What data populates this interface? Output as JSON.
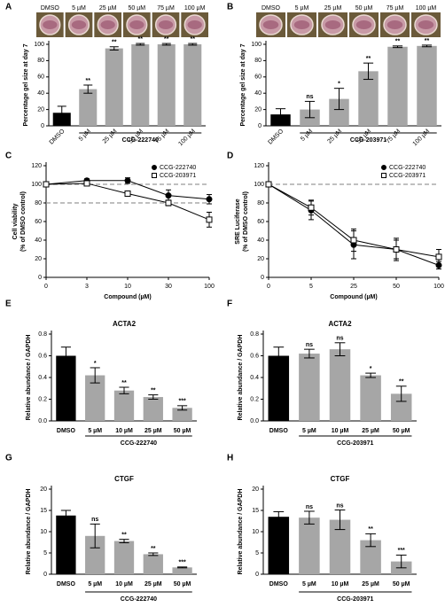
{
  "chart_data": [
    {
      "type": "bar",
      "panel": "A",
      "photo_labels": [
        "DMSO",
        "5 µM",
        "25 µM",
        "50 µM",
        "75 µM",
        "100 µM"
      ],
      "ylabel": [
        "Percentage gel size at day 7"
      ],
      "categories": [
        "DMSO",
        "5 µM",
        "25 µM",
        "50 µM",
        "75 µM",
        "100 µM"
      ],
      "values": [
        16,
        45,
        95,
        100,
        100,
        100
      ],
      "errors": [
        8,
        5,
        2,
        1,
        1,
        1
      ],
      "significance": [
        null,
        "**",
        "**",
        "**",
        "**",
        "**"
      ],
      "colors": [
        "#000000",
        "#a6a6a6",
        "#a6a6a6",
        "#a6a6a6",
        "#a6a6a6",
        "#a6a6a6"
      ],
      "ylim": [
        0,
        100
      ],
      "yticks": [
        0,
        20,
        40,
        60,
        80,
        100
      ],
      "group_label": "CCG-222740"
    },
    {
      "type": "bar",
      "panel": "B",
      "photo_labels": [
        "DMSO",
        "5 µM",
        "25 µM",
        "50 µM",
        "75 µM",
        "100 µM"
      ],
      "ylabel": [
        "Percentage gel size at day 7"
      ],
      "categories": [
        "DMSO",
        "5 µM",
        "25 µM",
        "50 µM",
        "75 µM",
        "100 µM"
      ],
      "values": [
        14,
        20,
        33,
        67,
        97,
        98
      ],
      "errors": [
        7,
        10,
        13,
        10,
        1,
        1
      ],
      "significance": [
        null,
        "ns",
        "*",
        "**",
        "**",
        "**"
      ],
      "colors": [
        "#000000",
        "#a6a6a6",
        "#a6a6a6",
        "#a6a6a6",
        "#a6a6a6",
        "#a6a6a6"
      ],
      "ylim": [
        0,
        100
      ],
      "yticks": [
        0,
        20,
        40,
        60,
        80,
        100
      ],
      "group_label": "CCG-203971"
    },
    {
      "type": "line",
      "panel": "C",
      "categories": [
        "0",
        "3",
        "10",
        "30",
        "100"
      ],
      "xlabel": "Compound (µM)",
      "ylabel": [
        "Cell viability",
        "(% of DMSO control)"
      ],
      "ylim": [
        0,
        120
      ],
      "yticks": [
        0,
        20,
        40,
        60,
        80,
        100,
        120
      ],
      "reference_lines": [
        100,
        80
      ],
      "legend": "upper right",
      "series": [
        {
          "name": "CCG-222740",
          "marker": "circle",
          "color": "#000000",
          "fill": "#000000",
          "values": [
            100,
            104,
            104,
            88,
            84
          ],
          "errors": [
            2,
            2,
            3,
            6,
            5
          ]
        },
        {
          "name": "CCG-203971",
          "marker": "square",
          "color": "#000000",
          "fill": "#ffffff",
          "values": [
            100,
            101,
            90,
            80,
            62
          ],
          "errors": [
            2,
            2,
            2,
            3,
            8
          ]
        }
      ]
    },
    {
      "type": "line",
      "panel": "D",
      "categories": [
        "0",
        "5",
        "25",
        "50",
        "100"
      ],
      "xlabel": "Compound (µM)",
      "ylabel": [
        "SRE Luciferase",
        "(% of DMSO control)"
      ],
      "ylim": [
        0,
        120
      ],
      "yticks": [
        0,
        20,
        40,
        60,
        80,
        100,
        120
      ],
      "reference_lines": [
        100
      ],
      "legend": "upper right",
      "series": [
        {
          "name": "CCG-222740",
          "marker": "circle",
          "color": "#000000",
          "fill": "#000000",
          "values": [
            100,
            72,
            35,
            30,
            13
          ],
          "errors": [
            2,
            10,
            15,
            12,
            4
          ]
        },
        {
          "name": "CCG-203971",
          "marker": "square",
          "color": "#000000",
          "fill": "#ffffff",
          "values": [
            100,
            75,
            40,
            30,
            22
          ],
          "errors": [
            2,
            8,
            12,
            10,
            8
          ]
        }
      ]
    },
    {
      "type": "bar",
      "panel": "E",
      "title": "ACTA2",
      "ylabel": [
        "Relative abundance / GAPDH"
      ],
      "categories": [
        "DMSO",
        "5 µM",
        "10 µM",
        "25 µM",
        "50 µM"
      ],
      "values": [
        0.6,
        0.42,
        0.28,
        0.22,
        0.12
      ],
      "errors": [
        0.08,
        0.07,
        0.03,
        0.02,
        0.02
      ],
      "significance": [
        null,
        "*",
        "**",
        "**",
        "***"
      ],
      "colors": [
        "#000000",
        "#a6a6a6",
        "#a6a6a6",
        "#a6a6a6",
        "#a6a6a6"
      ],
      "ylim": [
        0,
        0.8
      ],
      "yticks": [
        {
          "value": 0,
          "label": "0.0"
        },
        {
          "value": 0.2,
          "label": "0.2"
        },
        {
          "value": 0.4,
          "label": "0.4"
        },
        {
          "value": 0.6,
          "label": "0.6"
        },
        {
          "value": 0.8,
          "label": "0.8"
        }
      ],
      "group_label": "CCG-222740"
    },
    {
      "type": "bar",
      "panel": "F",
      "title": "ACTA2",
      "ylabel": [
        "Relative abundance / GAPDH"
      ],
      "categories": [
        "DMSO",
        "5 µM",
        "10 µM",
        "25 µM",
        "50 µM"
      ],
      "values": [
        0.6,
        0.62,
        0.66,
        0.42,
        0.25
      ],
      "errors": [
        0.08,
        0.04,
        0.06,
        0.02,
        0.07
      ],
      "significance": [
        null,
        "ns",
        "ns",
        "*",
        "**"
      ],
      "colors": [
        "#000000",
        "#a6a6a6",
        "#a6a6a6",
        "#a6a6a6",
        "#a6a6a6"
      ],
      "ylim": [
        0,
        0.8
      ],
      "yticks": [
        {
          "value": 0,
          "label": "0.0"
        },
        {
          "value": 0.2,
          "label": "0.2"
        },
        {
          "value": 0.4,
          "label": "0.4"
        },
        {
          "value": 0.6,
          "label": "0.6"
        },
        {
          "value": 0.8,
          "label": "0.8"
        }
      ],
      "group_label": "CCG-203971"
    },
    {
      "type": "bar",
      "panel": "G",
      "title": "CTGF",
      "ylabel": [
        "Relative abundance / GAPDH"
      ],
      "categories": [
        "DMSO",
        "5 µM",
        "10 µM",
        "25 µM",
        "50 µM"
      ],
      "values": [
        13.8,
        9,
        7.8,
        4.7,
        1.6
      ],
      "errors": [
        1.2,
        2.8,
        0.4,
        0.3,
        0.1
      ],
      "significance": [
        null,
        "ns",
        "**",
        "**",
        "***"
      ],
      "colors": [
        "#000000",
        "#a6a6a6",
        "#a6a6a6",
        "#a6a6a6",
        "#a6a6a6"
      ],
      "ylim": [
        0,
        20
      ],
      "yticks": [
        0,
        5,
        10,
        15,
        20
      ],
      "group_label": "CCG-222740"
    },
    {
      "type": "bar",
      "panel": "H",
      "title": "CTGF",
      "ylabel": [
        "Relative abundance / GAPDH"
      ],
      "categories": [
        "DMSO",
        "5 µM",
        "10 µM",
        "25 µM",
        "50 µM"
      ],
      "values": [
        13.5,
        13.3,
        12.8,
        8,
        3
      ],
      "errors": [
        1.2,
        1.5,
        2.3,
        1.5,
        1.5
      ],
      "significance": [
        null,
        "ns",
        "ns",
        "**",
        "***"
      ],
      "colors": [
        "#000000",
        "#a6a6a6",
        "#a6a6a6",
        "#a6a6a6",
        "#a6a6a6"
      ],
      "ylim": [
        0,
        20
      ],
      "yticks": [
        0,
        5,
        10,
        15,
        20
      ],
      "group_label": "CCG-203971"
    }
  ]
}
